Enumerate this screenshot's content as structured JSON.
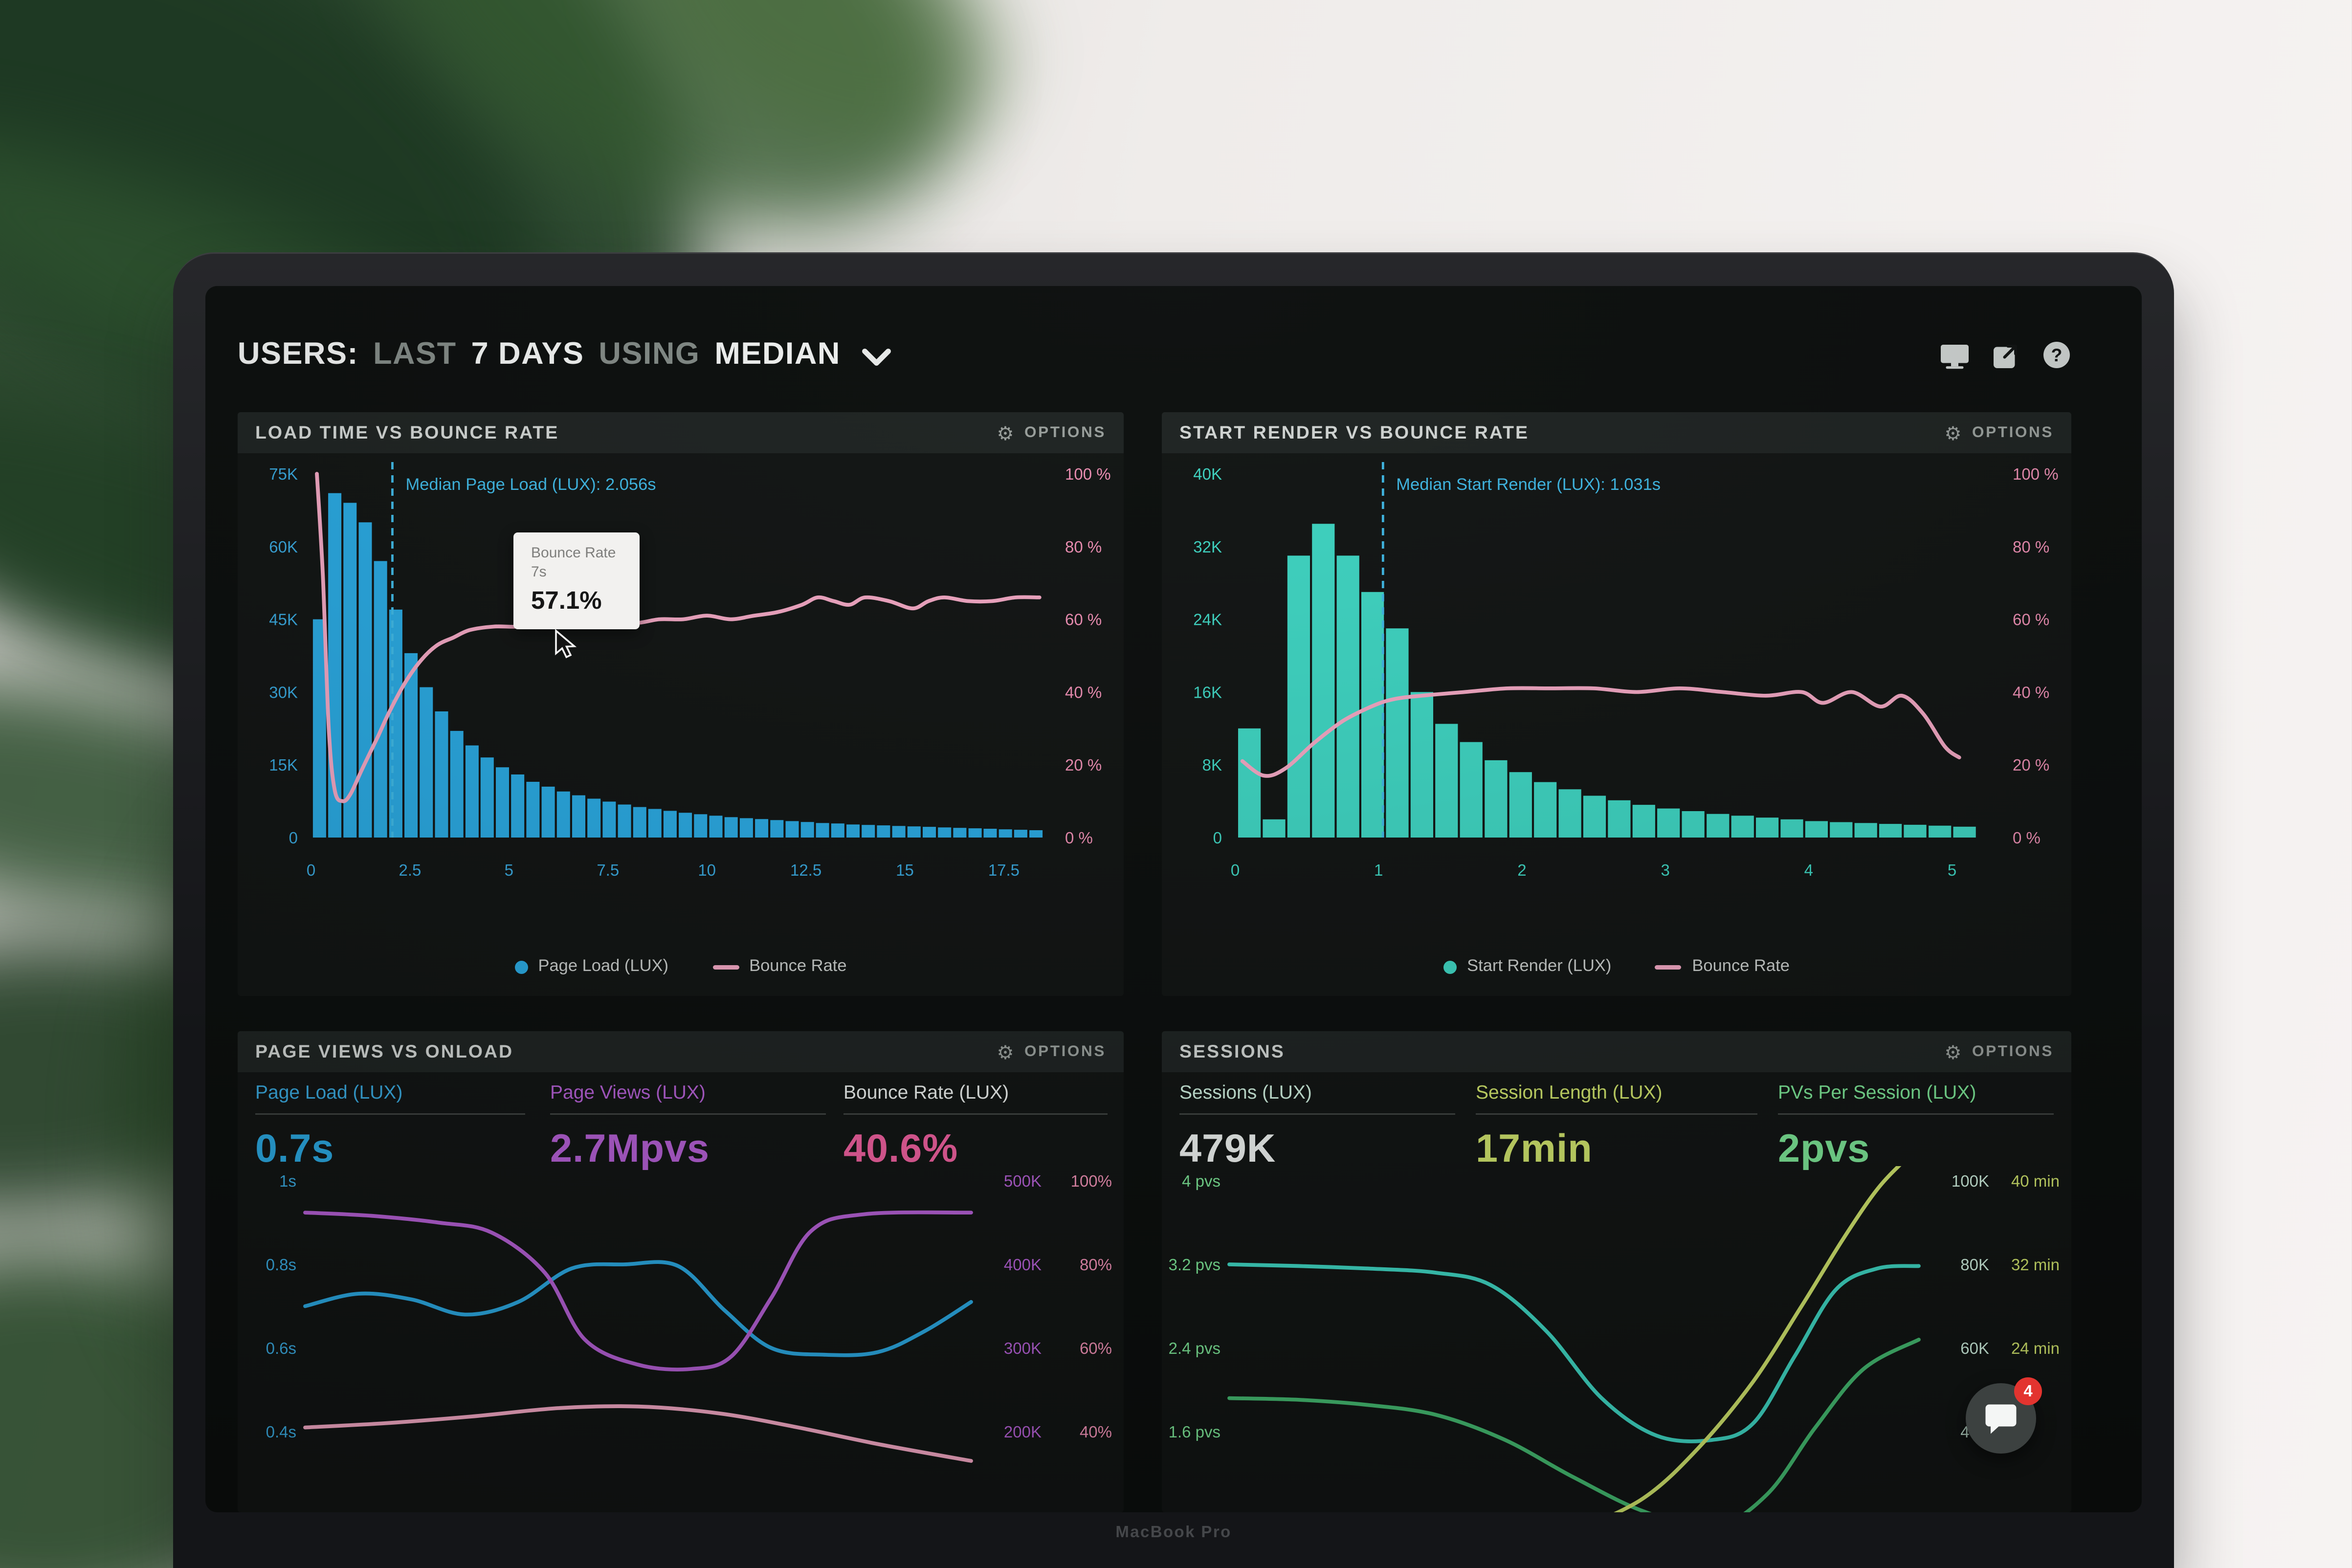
{
  "header": {
    "segments": [
      {
        "text": "USERS:",
        "bright": true
      },
      {
        "text": "LAST",
        "bright": false
      },
      {
        "text": "7 DAYS",
        "bright": true
      },
      {
        "text": "USING",
        "bright": false
      },
      {
        "text": "MEDIAN",
        "bright": true
      }
    ]
  },
  "options_label": "OPTIONS",
  "laptop_brand": "MacBook Pro",
  "chat_widget": {
    "badge": "4"
  },
  "colors": {
    "blue": "#29a9e2",
    "teal": "#3ed6c3",
    "pink_line": "#f2a7c3",
    "pink_text": "#ef8fb4",
    "purple": "#b45fd4",
    "green": "#7be495",
    "yellow_green": "#cfe36b",
    "median_line": "#3fb9e6",
    "panel_header_bg": "#1e2322",
    "screen_bg": "#0b0e0d"
  },
  "chart_data": [
    {
      "id": "load-time-vs-bounce-rate",
      "type": "histogram+line",
      "title": "LOAD TIME VS BOUNCE RATE",
      "x_max": 18.6,
      "x_ticks": [
        0,
        2.5,
        5,
        7.5,
        10,
        12.5,
        15,
        17.5
      ],
      "left_axis": {
        "label_color": "#38a8de",
        "ticks": [
          "75K",
          "60K",
          "45K",
          "30K",
          "15K",
          "0"
        ],
        "max_k": 75
      },
      "right_axis": {
        "label_color": "#ef8fb4",
        "ticks": [
          "100 %",
          "80 %",
          "60 %",
          "40 %",
          "20 %",
          "0 %"
        ]
      },
      "bars": {
        "name": "Page Load (LUX)",
        "color": "#29a9e2",
        "start": 0.05,
        "step": 0.385,
        "values_k": [
          45,
          71,
          69,
          65,
          57,
          47,
          38,
          31,
          26,
          22,
          19,
          16.5,
          14.5,
          13,
          11.5,
          10.5,
          9.5,
          8.7,
          8,
          7.4,
          6.8,
          6.3,
          5.9,
          5.5,
          5.1,
          4.8,
          4.5,
          4.2,
          4,
          3.8,
          3.6,
          3.4,
          3.2,
          3,
          2.9,
          2.7,
          2.6,
          2.5,
          2.4,
          2.3,
          2.2,
          2.1,
          2,
          1.9,
          1.8,
          1.7,
          1.6,
          1.5
        ]
      },
      "line": {
        "name": "Bounce Rate",
        "color": "#f2a7c3",
        "points_x_pct": [
          [
            0.15,
            100
          ],
          [
            0.3,
            72
          ],
          [
            0.45,
            30
          ],
          [
            0.6,
            13
          ],
          [
            0.8,
            10
          ],
          [
            1,
            12
          ],
          [
            1.3,
            19
          ],
          [
            1.7,
            28
          ],
          [
            2,
            35
          ],
          [
            2.4,
            43
          ],
          [
            2.8,
            49
          ],
          [
            3.2,
            53
          ],
          [
            3.6,
            55
          ],
          [
            4,
            57
          ],
          [
            4.6,
            58
          ],
          [
            5.2,
            58
          ],
          [
            5.8,
            59
          ],
          [
            6.4,
            58
          ],
          [
            7,
            59
          ],
          [
            7.6,
            60
          ],
          [
            8.2,
            59
          ],
          [
            8.8,
            60
          ],
          [
            9.4,
            60
          ],
          [
            10,
            61
          ],
          [
            10.6,
            60
          ],
          [
            11.2,
            61
          ],
          [
            11.8,
            62
          ],
          [
            12.4,
            64
          ],
          [
            12.8,
            66
          ],
          [
            13.2,
            65
          ],
          [
            13.6,
            64
          ],
          [
            14,
            66
          ],
          [
            14.6,
            65
          ],
          [
            15.2,
            63
          ],
          [
            15.6,
            65
          ],
          [
            16,
            66
          ],
          [
            16.6,
            65
          ],
          [
            17.2,
            65
          ],
          [
            17.8,
            66
          ],
          [
            18.4,
            66
          ]
        ]
      },
      "median": {
        "x": 2.056,
        "label": "Median Page Load (LUX): 2.056s",
        "color": "#3fb9e6"
      },
      "tooltip": {
        "title": "Bounce Rate",
        "subtitle": "7s",
        "value": "57.1%"
      },
      "legend": [
        {
          "swatch": "dot",
          "color": "#29a9e2",
          "label": "Page Load (LUX)"
        },
        {
          "swatch": "line",
          "color": "#f2a7c3",
          "label": "Bounce Rate"
        }
      ]
    },
    {
      "id": "start-render-vs-bounce-rate",
      "type": "histogram+line",
      "title": "START RENDER VS BOUNCE RATE",
      "x_max": 5.3,
      "x_ticks": [
        0,
        1,
        2,
        3,
        4,
        5
      ],
      "left_axis": {
        "label_color": "#3ed6c3",
        "ticks": [
          "40K",
          "32K",
          "24K",
          "16K",
          "8K",
          "0"
        ],
        "max_k": 40
      },
      "right_axis": {
        "label_color": "#ef8fb4",
        "ticks": [
          "100 %",
          "80 %",
          "60 %",
          "40 %",
          "20 %",
          "0 %"
        ]
      },
      "bars": {
        "name": "Start Render (LUX)",
        "color": "#3ed6c3",
        "start": 0.02,
        "step": 0.172,
        "values_k": [
          12,
          2,
          31,
          34.5,
          31,
          27,
          23,
          16,
          12.5,
          10.5,
          8.5,
          7.2,
          6.1,
          5.3,
          4.6,
          4.1,
          3.6,
          3.2,
          2.9,
          2.6,
          2.4,
          2.2,
          2,
          1.8,
          1.7,
          1.6,
          1.5,
          1.4,
          1.3,
          1.2
        ]
      },
      "line": {
        "name": "Bounce Rate",
        "color": "#f2a7c3",
        "points_x_pct": [
          [
            0.05,
            21
          ],
          [
            0.2,
            17
          ],
          [
            0.35,
            19
          ],
          [
            0.55,
            26
          ],
          [
            0.75,
            32
          ],
          [
            0.95,
            36
          ],
          [
            1.1,
            38
          ],
          [
            1.3,
            39
          ],
          [
            1.6,
            40
          ],
          [
            1.9,
            41
          ],
          [
            2.2,
            41
          ],
          [
            2.5,
            41
          ],
          [
            2.8,
            40
          ],
          [
            3.1,
            41
          ],
          [
            3.4,
            40
          ],
          [
            3.7,
            39
          ],
          [
            3.95,
            40
          ],
          [
            4.1,
            37
          ],
          [
            4.3,
            40
          ],
          [
            4.5,
            36
          ],
          [
            4.65,
            39
          ],
          [
            4.8,
            34
          ],
          [
            4.95,
            25
          ],
          [
            5.05,
            22
          ]
        ]
      },
      "median": {
        "x": 1.031,
        "label": "Median Start Render (LUX): 1.031s",
        "color": "#3fb9e6"
      },
      "legend": [
        {
          "swatch": "dot",
          "color": "#3ed6c3",
          "label": "Start Render (LUX)"
        },
        {
          "swatch": "line",
          "color": "#f2a7c3",
          "label": "Bounce Rate"
        }
      ]
    },
    {
      "id": "page-views-vs-onload",
      "type": "multi-line",
      "title": "PAGE VIEWS VS ONLOAD",
      "metrics": [
        {
          "label": "Page Load (LUX)",
          "value": "0.7s",
          "label_color": "#38a8de",
          "value_color": "#2aa7e0"
        },
        {
          "label": "Page Views (LUX)",
          "value": "2.7Mpvs",
          "label_color": "#b45fd4",
          "value_color": "#b45fd4"
        },
        {
          "label": "Bounce Rate (LUX)",
          "value": "40.6%",
          "label_color": "#e9edeb",
          "value_color": "#ee5f9e"
        }
      ],
      "left_axis": {
        "label_color": "#38a8de",
        "ticks": [
          "1s",
          "0.8s",
          "0.6s",
          "0.4s"
        ]
      },
      "right_axis": {
        "columns": [
          {
            "color": "#b45fd4",
            "ticks": [
              "500K",
              "400K",
              "300K",
              "200K"
            ]
          },
          {
            "color": "#ef8fb4",
            "ticks": [
              "100%",
              "80%",
              "60%",
              "40%"
            ]
          }
        ]
      },
      "lines": [
        {
          "name": "Page Load (LUX)",
          "color": "#2aa7e0",
          "points": [
            [
              0,
              1.5
            ],
            [
              0.08,
              1.35
            ],
            [
              0.16,
              1.42
            ],
            [
              0.24,
              1.6
            ],
            [
              0.32,
              1.45
            ],
            [
              0.4,
              1.05
            ],
            [
              0.48,
              1.0
            ],
            [
              0.56,
              1.02
            ],
            [
              0.63,
              1.55
            ],
            [
              0.7,
              2.0
            ],
            [
              0.78,
              2.08
            ],
            [
              0.86,
              2.05
            ],
            [
              0.93,
              1.8
            ],
            [
              1,
              1.45
            ]
          ]
        },
        {
          "name": "Page Views (LUX)",
          "color": "#b45fd4",
          "points": [
            [
              0,
              0.38
            ],
            [
              0.1,
              0.42
            ],
            [
              0.2,
              0.5
            ],
            [
              0.28,
              0.62
            ],
            [
              0.36,
              1.1
            ],
            [
              0.42,
              1.9
            ],
            [
              0.5,
              2.2
            ],
            [
              0.58,
              2.25
            ],
            [
              0.64,
              2.1
            ],
            [
              0.7,
              1.4
            ],
            [
              0.76,
              0.6
            ],
            [
              0.84,
              0.4
            ],
            [
              1,
              0.38
            ]
          ]
        },
        {
          "name": "Bounce Rate",
          "color": "#f2a7c3",
          "points": [
            [
              0,
              2.95
            ],
            [
              0.12,
              2.9
            ],
            [
              0.25,
              2.82
            ],
            [
              0.38,
              2.72
            ],
            [
              0.5,
              2.7
            ],
            [
              0.62,
              2.78
            ],
            [
              0.74,
              2.95
            ],
            [
              0.86,
              3.15
            ],
            [
              1,
              3.35
            ]
          ]
        }
      ]
    },
    {
      "id": "sessions",
      "type": "multi-line",
      "title": "SESSIONS",
      "metrics": [
        {
          "label": "Sessions (LUX)",
          "value": "479K",
          "label_color": "#cdeedd",
          "value_color": "#eef2f0"
        },
        {
          "label": "Session Length (LUX)",
          "value": "17min",
          "label_color": "#cfe36b",
          "value_color": "#cfe36b"
        },
        {
          "label": "PVs Per Session (LUX)",
          "value": "2pvs",
          "label_color": "#7be495",
          "value_color": "#7be495"
        }
      ],
      "left_axis": {
        "label_color": "#7be495",
        "ticks": [
          "4 pvs",
          "3.2 pvs",
          "2.4 pvs",
          "1.6 pvs"
        ]
      },
      "right_axis": {
        "columns": [
          {
            "color": "#cdeedd",
            "ticks": [
              "100K",
              "80K",
              "60K",
              "40K"
            ]
          },
          {
            "color": "#cfe36b",
            "ticks": [
              "40 min",
              "32 min",
              "24 min",
              ""
            ]
          }
        ]
      },
      "lines": [
        {
          "name": "Sessions (LUX)",
          "color": "#3ed6c3",
          "points": [
            [
              0,
              1
            ],
            [
              0.1,
              1.02
            ],
            [
              0.2,
              1.05
            ],
            [
              0.3,
              1.1
            ],
            [
              0.38,
              1.25
            ],
            [
              0.46,
              1.8
            ],
            [
              0.54,
              2.6
            ],
            [
              0.62,
              3.05
            ],
            [
              0.7,
              3.1
            ],
            [
              0.76,
              2.9
            ],
            [
              0.82,
              2.1
            ],
            [
              0.88,
              1.3
            ],
            [
              0.94,
              1.05
            ],
            [
              1,
              1.02
            ]
          ]
        },
        {
          "name": "PVs Per Session (LUX)",
          "color": "#43b86f",
          "points": [
            [
              0,
              2.6
            ],
            [
              0.1,
              2.62
            ],
            [
              0.2,
              2.68
            ],
            [
              0.3,
              2.8
            ],
            [
              0.4,
              3.1
            ],
            [
              0.5,
              3.55
            ],
            [
              0.6,
              3.95
            ],
            [
              0.7,
              4.15
            ],
            [
              0.78,
              3.75
            ],
            [
              0.85,
              2.95
            ],
            [
              0.92,
              2.25
            ],
            [
              1,
              1.9
            ]
          ]
        },
        {
          "name": "Session Length (LUX)",
          "color": "#cfe36b",
          "points": [
            [
              0.5,
              4.2
            ],
            [
              0.6,
              3.8
            ],
            [
              0.68,
              3.2
            ],
            [
              0.76,
              2.4
            ],
            [
              0.83,
              1.5
            ],
            [
              0.89,
              0.7
            ],
            [
              0.94,
              0.1
            ],
            [
              0.98,
              -0.25
            ]
          ]
        }
      ]
    }
  ]
}
